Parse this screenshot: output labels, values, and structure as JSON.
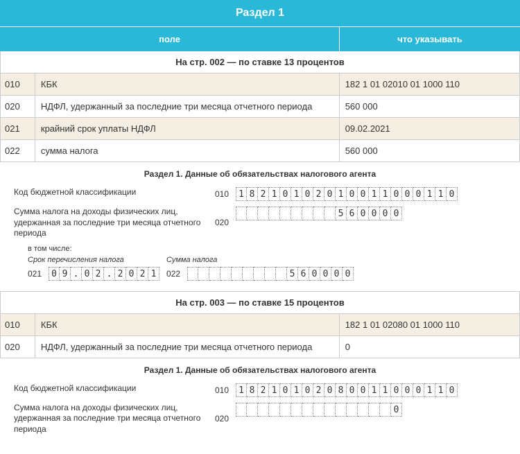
{
  "colors": {
    "header_bg": "#29b8d8",
    "alt_row_bg": "#f5eee3",
    "border": "#cccccc",
    "box_border": "#888888"
  },
  "header": {
    "title": "Раздел 1",
    "col_field": "поле",
    "col_value": "что указывать"
  },
  "section1": {
    "title": "На стр. 002 — по ставке 13 процентов",
    "rows": [
      {
        "code": "010",
        "field": "КБК",
        "value": "182 1 01 02010 01 1000 110"
      },
      {
        "code": "020",
        "field": "НДФЛ, удержанный за последние три месяца отчетного периода",
        "value": "560 000"
      },
      {
        "code": "021",
        "field": "крайний срок уплаты НДФЛ",
        "value": "09.02.2021"
      },
      {
        "code": "022",
        "field": "сумма налога",
        "value": "560 000"
      }
    ]
  },
  "form1": {
    "title": "Раздел 1. Данные об обязательствах налогового агента",
    "line1": {
      "label": "Код бюджетной классификации",
      "code": "010",
      "boxes": [
        "1",
        "8",
        "2",
        "1",
        "0",
        "1",
        "0",
        "2",
        "0",
        "1",
        "0",
        "0",
        "1",
        "1",
        "0",
        "0",
        "0",
        "1",
        "1",
        "0"
      ]
    },
    "line2": {
      "label": "Сумма налога на доходы физических лиц, удержанная за последние три месяца отчетного периода",
      "code": "020",
      "boxes": [
        "",
        "",
        "",
        "",
        "",
        "",
        "",
        "",
        "",
        "5",
        "6",
        "0",
        "0",
        "0",
        "0"
      ]
    },
    "sub_label": "в том числе:",
    "col_label1": "Срок перечисления налога",
    "col_label2": "Сумма налога",
    "line3": {
      "code1": "021",
      "boxes1": [
        "0",
        "9",
        ".",
        "0",
        "2",
        ".",
        "2",
        "0",
        "2",
        "1"
      ],
      "code2": "022",
      "boxes2": [
        "",
        "",
        "",
        "",
        "",
        "",
        "",
        "",
        "",
        "5",
        "6",
        "0",
        "0",
        "0",
        "0"
      ]
    }
  },
  "section2": {
    "title": "На стр. 003 — по ставке 15 процентов",
    "rows": [
      {
        "code": "010",
        "field": "КБК",
        "value": "182 1 01 02080 01 1000 110"
      },
      {
        "code": "020",
        "field": "НДФЛ, удержанный за последние три месяца отчетного периода",
        "value": "0"
      }
    ]
  },
  "form2": {
    "title": "Раздел 1. Данные об обязательствах налогового агента",
    "line1": {
      "label": "Код бюджетной классификации",
      "code": "010",
      "boxes": [
        "1",
        "8",
        "2",
        "1",
        "0",
        "1",
        "0",
        "2",
        "0",
        "8",
        "0",
        "0",
        "1",
        "1",
        "0",
        "0",
        "0",
        "1",
        "1",
        "0"
      ]
    },
    "line2": {
      "label": "Сумма налога на доходы физических лиц, удержанная за последние три месяца отчетного периода",
      "code": "020",
      "boxes": [
        "",
        "",
        "",
        "",
        "",
        "",
        "",
        "",
        "",
        "",
        "",
        "",
        "",
        "",
        "0"
      ]
    }
  }
}
